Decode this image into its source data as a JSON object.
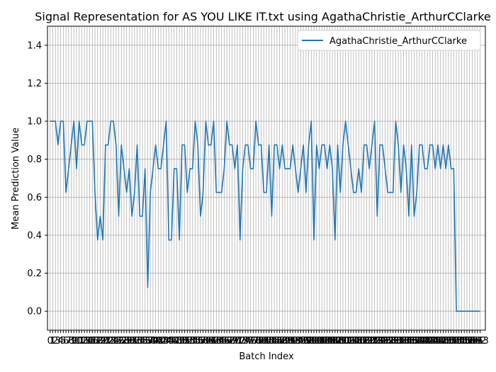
{
  "chart_data": {
    "type": "line",
    "title": "Signal Representation for AS YOU LIKE IT.txt using AgathaChristie_ArthurCClarke",
    "xlabel": "Batch Index",
    "ylabel": "Mean Prediction Value",
    "xlim": [
      -1,
      165
    ],
    "ylim": [
      -0.1,
      1.5
    ],
    "yticks": [
      "0.0",
      "0.2",
      "0.4",
      "0.6",
      "0.8",
      "1.0",
      "1.2",
      "1.4"
    ],
    "grid": true,
    "legend_position": "top-right",
    "series": [
      {
        "name": "AgathaChristie_ArthurCClarke",
        "color": "#1f77b4",
        "x": [
          0,
          1,
          2,
          3,
          4,
          5,
          6,
          7,
          8,
          9,
          10,
          11,
          12,
          13,
          14,
          15,
          16,
          17,
          18,
          19,
          20,
          21,
          22,
          23,
          24,
          25,
          26,
          27,
          28,
          29,
          30,
          31,
          32,
          33,
          34,
          35,
          36,
          37,
          38,
          39,
          40,
          41,
          42,
          43,
          44,
          45,
          46,
          47,
          48,
          49,
          50,
          51,
          52,
          53,
          54,
          55,
          56,
          57,
          58,
          59,
          60,
          61,
          62,
          63,
          64,
          65,
          66,
          67,
          68,
          69,
          70,
          71,
          72,
          73,
          74,
          75,
          76,
          77,
          78,
          79,
          80,
          81,
          82,
          83,
          84,
          85,
          86,
          87,
          88,
          89,
          90,
          91,
          92,
          93,
          94,
          95,
          96,
          97,
          98,
          99,
          100,
          101,
          102,
          103,
          104,
          105,
          106,
          107,
          108,
          109,
          110,
          111,
          112,
          113,
          114,
          115,
          116,
          117,
          118,
          119,
          120,
          121,
          122,
          123,
          124,
          125,
          126,
          127,
          128,
          129,
          130,
          131,
          132,
          133,
          134,
          135,
          136,
          137,
          138,
          139,
          140,
          141,
          142,
          143,
          144,
          145,
          146,
          147,
          148,
          149,
          150,
          151,
          152,
          153,
          154,
          155,
          156,
          157,
          158,
          159,
          160,
          161,
          162,
          163
        ],
        "values": [
          1.0,
          1.0,
          1.0,
          0.875,
          1.0,
          1.0,
          0.625,
          0.75,
          0.875,
          1.0,
          0.75,
          1.0,
          0.875,
          0.875,
          1.0,
          1.0,
          1.0,
          0.625,
          0.375,
          0.5,
          0.375,
          0.875,
          0.875,
          1.0,
          1.0,
          0.875,
          0.5,
          0.875,
          0.75,
          0.625,
          0.75,
          0.5,
          0.625,
          0.875,
          0.5,
          0.5,
          0.75,
          0.125,
          0.625,
          0.75,
          0.875,
          0.75,
          0.75,
          0.875,
          1.0,
          0.375,
          0.375,
          0.75,
          0.75,
          0.375,
          0.875,
          0.875,
          0.625,
          0.75,
          0.75,
          1.0,
          0.875,
          0.5,
          0.625,
          1.0,
          0.875,
          0.875,
          1.0,
          0.625,
          0.625,
          0.625,
          0.75,
          1.0,
          0.875,
          0.875,
          0.75,
          0.875,
          0.375,
          0.75,
          0.875,
          0.875,
          0.75,
          0.75,
          1.0,
          0.875,
          0.875,
          0.625,
          0.625,
          0.875,
          0.5,
          0.875,
          0.875,
          0.75,
          0.875,
          0.75,
          0.75,
          0.75,
          0.875,
          0.75,
          0.625,
          0.75,
          0.875,
          0.625,
          0.875,
          1.0,
          0.375,
          0.875,
          0.75,
          0.875,
          0.875,
          0.75,
          0.875,
          0.75,
          0.375,
          0.875,
          0.625,
          0.875,
          1.0,
          0.875,
          0.75,
          0.625,
          0.625,
          0.75,
          0.625,
          0.875,
          0.875,
          0.75,
          0.875,
          1.0,
          0.5,
          0.875,
          0.875,
          0.75,
          0.625,
          0.625,
          0.625,
          1.0,
          0.875,
          0.625,
          0.875,
          0.75,
          0.5,
          0.875,
          0.5,
          0.625,
          0.875,
          0.875,
          0.75,
          0.75,
          0.875,
          0.875,
          0.75,
          0.875,
          0.75,
          0.875,
          0.75,
          0.875,
          0.75,
          0.75,
          0.0,
          0.0,
          0.0,
          0.0,
          0.0,
          0.0,
          0.0,
          0.0,
          0.0,
          0.0
        ]
      }
    ],
    "xtick_labels": [
      "0",
      "1",
      "2",
      "3",
      "4",
      "5",
      "6",
      "7",
      "8",
      "9",
      "10",
      "11",
      "12",
      "13",
      "14",
      "15",
      "16",
      "17",
      "18",
      "19",
      "20",
      "21",
      "22",
      "23",
      "24",
      "25",
      "26",
      "27",
      "28",
      "29",
      "30",
      "31",
      "32",
      "33",
      "34",
      "35",
      "36",
      "37",
      "38",
      "39",
      "40",
      "41",
      "42",
      "43",
      "44",
      "45",
      "46",
      "47",
      "48",
      "49",
      "50",
      "51",
      "52",
      "53",
      "54",
      "55",
      "56",
      "57",
      "58",
      "59",
      "60",
      "61",
      "62",
      "63",
      "64",
      "65",
      "66",
      "67",
      "68",
      "69",
      "70",
      "71",
      "72",
      "73",
      "74",
      "75",
      "76",
      "77",
      "78",
      "79",
      "80",
      "81",
      "82",
      "83",
      "84",
      "85",
      "86",
      "87",
      "88",
      "89",
      "90",
      "91",
      "92",
      "93",
      "94",
      "95",
      "96",
      "97",
      "98",
      "99",
      "100",
      "101",
      "102",
      "103",
      "104",
      "105",
      "106",
      "107",
      "108",
      "109",
      "110",
      "111",
      "112",
      "113",
      "114",
      "115",
      "116",
      "117",
      "118",
      "119",
      "120",
      "121",
      "122",
      "123",
      "124",
      "125",
      "126",
      "127",
      "128",
      "129",
      "130",
      "131",
      "132",
      "133",
      "134",
      "135",
      "136",
      "137",
      "138",
      "139",
      "140",
      "141",
      "142",
      "143",
      "144",
      "145",
      "146",
      "147",
      "148",
      "149",
      "150",
      "151",
      "152",
      "153",
      "154",
      "155",
      "156",
      "157",
      "158",
      "159",
      "160",
      "161",
      "162",
      "163"
    ]
  }
}
